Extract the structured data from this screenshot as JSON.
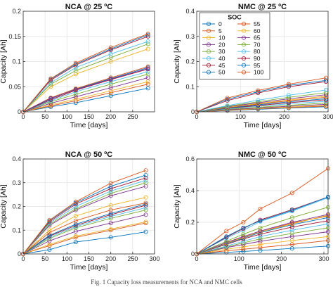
{
  "figure": {
    "caption": "Fig. 1 Capacity loss measurements for NCA and NMC cells"
  },
  "chart_data": [
    {
      "type": "line",
      "title": "NCA @ 25 ºC",
      "xlabel": "Time [days]",
      "ylabel": "Capacity [Ah]",
      "xlim": [
        0,
        300
      ],
      "ylim": [
        0,
        0.2
      ],
      "xticks": [
        0,
        50,
        100,
        150,
        200,
        250
      ],
      "yticks": [
        0,
        0.05,
        0.1,
        0.15,
        0.2
      ],
      "grid": true,
      "x": [
        0,
        63,
        120,
        200,
        285
      ],
      "series": [
        {
          "name": "0",
          "color": "#0072BD",
          "values": [
            0,
            0.01,
            0.018,
            0.032,
            0.047
          ]
        },
        {
          "name": "5",
          "color": "#D95319",
          "values": [
            0,
            0.012,
            0.022,
            0.038,
            0.055
          ]
        },
        {
          "name": "10",
          "color": "#EDB120",
          "values": [
            0,
            0.014,
            0.025,
            0.042,
            0.06
          ]
        },
        {
          "name": "20",
          "color": "#7E2F8E",
          "values": [
            0,
            0.017,
            0.03,
            0.048,
            0.068
          ]
        },
        {
          "name": "30",
          "color": "#77AC30",
          "values": [
            0,
            0.02,
            0.035,
            0.055,
            0.075
          ]
        },
        {
          "name": "40",
          "color": "#4DBEEE",
          "values": [
            0,
            0.022,
            0.04,
            0.06,
            0.08
          ]
        },
        {
          "name": "45",
          "color": "#A2142F",
          "values": [
            0,
            0.024,
            0.043,
            0.064,
            0.085
          ]
        },
        {
          "name": "50",
          "color": "#0072BD",
          "values": [
            0,
            0.026,
            0.045,
            0.066,
            0.088
          ]
        },
        {
          "name": "55",
          "color": "#D95319",
          "values": [
            0,
            0.028,
            0.046,
            0.068,
            0.09
          ]
        },
        {
          "name": "60",
          "color": "#EDB120",
          "values": [
            0,
            0.05,
            0.075,
            0.1,
            0.125
          ]
        },
        {
          "name": "65",
          "color": "#7E2F8E",
          "values": [
            0,
            0.027,
            0.044,
            0.065,
            0.086
          ]
        },
        {
          "name": "70",
          "color": "#77AC30",
          "values": [
            0,
            0.055,
            0.082,
            0.108,
            0.135
          ]
        },
        {
          "name": "80",
          "color": "#4DBEEE",
          "values": [
            0,
            0.058,
            0.088,
            0.115,
            0.14
          ]
        },
        {
          "name": "90",
          "color": "#A2142F",
          "values": [
            0,
            0.063,
            0.093,
            0.123,
            0.15
          ]
        },
        {
          "name": "95",
          "color": "#0072BD",
          "values": [
            0,
            0.065,
            0.095,
            0.125,
            0.153
          ]
        },
        {
          "name": "100",
          "color": "#D95319",
          "values": [
            0,
            0.066,
            0.097,
            0.128,
            0.155
          ]
        }
      ]
    },
    {
      "type": "line",
      "title": "NMC @ 25 ºC",
      "xlabel": "Time [days]",
      "ylabel": "Capacity [Ah]",
      "xlim": [
        0,
        300
      ],
      "ylim": [
        0,
        0.4
      ],
      "xticks": [
        0,
        100,
        200,
        300
      ],
      "yticks": [
        0,
        0.1,
        0.2,
        0.3,
        0.4
      ],
      "grid": true,
      "legend": {
        "title": "SOC",
        "placement": "top-right",
        "columns": 2
      },
      "x": [
        0,
        70,
        140,
        210,
        295
      ],
      "series": [
        {
          "name": "0",
          "color": "#0072BD",
          "values": [
            0,
            0.005,
            0.01,
            0.015,
            0.02
          ]
        },
        {
          "name": "5",
          "color": "#D95319",
          "values": [
            0,
            0.006,
            0.012,
            0.017,
            0.023
          ]
        },
        {
          "name": "10",
          "color": "#EDB120",
          "values": [
            0,
            0.007,
            0.013,
            0.019,
            0.026
          ]
        },
        {
          "name": "20",
          "color": "#7E2F8E",
          "values": [
            0,
            0.008,
            0.015,
            0.022,
            0.03
          ]
        },
        {
          "name": "30",
          "color": "#77AC30",
          "values": [
            0,
            0.01,
            0.018,
            0.026,
            0.035
          ]
        },
        {
          "name": "40",
          "color": "#4DBEEE",
          "values": [
            0,
            0.012,
            0.022,
            0.032,
            0.042
          ]
        },
        {
          "name": "45",
          "color": "#A2142F",
          "values": [
            0,
            0.014,
            0.025,
            0.036,
            0.048
          ]
        },
        {
          "name": "50",
          "color": "#0072BD",
          "values": [
            0,
            0.015,
            0.028,
            0.04,
            0.052
          ]
        },
        {
          "name": "55",
          "color": "#D95319",
          "values": [
            0,
            0.017,
            0.031,
            0.044,
            0.058
          ]
        },
        {
          "name": "60",
          "color": "#EDB120",
          "values": [
            0,
            0.018,
            0.033,
            0.047,
            0.062
          ]
        },
        {
          "name": "65",
          "color": "#7E2F8E",
          "values": [
            0,
            0.02,
            0.036,
            0.052,
            0.068
          ]
        },
        {
          "name": "70",
          "color": "#77AC30",
          "values": [
            0,
            0.022,
            0.04,
            0.058,
            0.076
          ]
        },
        {
          "name": "80",
          "color": "#4DBEEE",
          "values": [
            0,
            0.025,
            0.046,
            0.066,
            0.087
          ]
        },
        {
          "name": "90",
          "color": "#A2142F",
          "values": [
            0,
            0.045,
            0.075,
            0.1,
            0.12
          ]
        },
        {
          "name": "95",
          "color": "#0072BD",
          "values": [
            0,
            0.05,
            0.08,
            0.105,
            0.125
          ]
        },
        {
          "name": "100",
          "color": "#D95319",
          "values": [
            0,
            0.055,
            0.085,
            0.11,
            0.135
          ]
        }
      ]
    },
    {
      "type": "line",
      "title": "NCA @ 50 ºC",
      "xlabel": "Time [days]",
      "ylabel": "Capacity [Ah]",
      "xlim": [
        0,
        300
      ],
      "ylim": [
        0,
        0.4
      ],
      "xticks": [
        0,
        50,
        100,
        150,
        200,
        250,
        300
      ],
      "yticks": [
        0,
        0.1,
        0.2,
        0.3,
        0.4
      ],
      "grid": true,
      "x": [
        0,
        60,
        120,
        200,
        280
      ],
      "series": [
        {
          "name": "0",
          "color": "#0072BD",
          "values": [
            0,
            0.018,
            0.05,
            0.07,
            0.093
          ]
        },
        {
          "name": "5",
          "color": "#D95319",
          "values": [
            0,
            0.035,
            0.07,
            0.1,
            0.13
          ]
        },
        {
          "name": "10",
          "color": "#EDB120",
          "values": [
            0,
            0.04,
            0.075,
            0.105,
            0.135
          ]
        },
        {
          "name": "20",
          "color": "#7E2F8E",
          "values": [
            0,
            0.055,
            0.095,
            0.13,
            0.165
          ]
        },
        {
          "name": "30",
          "color": "#77AC30",
          "values": [
            0,
            0.065,
            0.11,
            0.15,
            0.185
          ]
        },
        {
          "name": "40",
          "color": "#4DBEEE",
          "values": [
            0,
            0.07,
            0.115,
            0.158,
            0.195
          ]
        },
        {
          "name": "45",
          "color": "#A2142F",
          "values": [
            0,
            0.075,
            0.12,
            0.165,
            0.205
          ]
        },
        {
          "name": "50",
          "color": "#0072BD",
          "values": [
            0,
            0.078,
            0.125,
            0.17,
            0.21
          ]
        },
        {
          "name": "55",
          "color": "#D95319",
          "values": [
            0,
            0.09,
            0.14,
            0.185,
            0.215
          ]
        },
        {
          "name": "60",
          "color": "#EDB120",
          "values": [
            0,
            0.1,
            0.16,
            0.205,
            0.238
          ]
        },
        {
          "name": "65",
          "color": "#7E2F8E",
          "values": [
            0,
            0.12,
            0.185,
            0.245,
            0.285
          ]
        },
        {
          "name": "70",
          "color": "#77AC30",
          "values": [
            0,
            0.125,
            0.19,
            0.255,
            0.3
          ]
        },
        {
          "name": "80",
          "color": "#4DBEEE",
          "values": [
            0,
            0.13,
            0.2,
            0.265,
            0.31
          ]
        },
        {
          "name": "90",
          "color": "#A2142F",
          "values": [
            0,
            0.135,
            0.21,
            0.275,
            0.32
          ]
        },
        {
          "name": "95",
          "color": "#0072BD",
          "values": [
            0,
            0.14,
            0.215,
            0.285,
            0.332
          ]
        },
        {
          "name": "100",
          "color": "#D95319",
          "values": [
            0,
            0.142,
            0.22,
            0.298,
            0.352
          ]
        }
      ]
    },
    {
      "type": "line",
      "title": "NMC @ 50 ºC",
      "xlabel": "Time [days]",
      "ylabel": "Capacity [Ah]",
      "xlim": [
        0,
        310
      ],
      "ylim": [
        0,
        0.6
      ],
      "xticks": [
        0,
        100,
        200,
        300
      ],
      "yticks": [
        0,
        0.2,
        0.4,
        0.6
      ],
      "grid": true,
      "x": [
        0,
        70,
        110,
        150,
        225,
        310
      ],
      "series": [
        {
          "name": "0",
          "color": "#0072BD",
          "values": [
            0,
            0.01,
            0.016,
            0.022,
            0.035,
            0.05
          ]
        },
        {
          "name": "5",
          "color": "#D95319",
          "values": [
            0,
            0.02,
            0.03,
            0.04,
            0.06,
            0.085
          ]
        },
        {
          "name": "10",
          "color": "#EDB120",
          "values": [
            0,
            0.03,
            0.045,
            0.06,
            0.085,
            0.11
          ]
        },
        {
          "name": "20",
          "color": "#7E2F8E",
          "values": [
            0,
            0.04,
            0.06,
            0.08,
            0.11,
            0.14
          ]
        },
        {
          "name": "30",
          "color": "#77AC30",
          "values": [
            0,
            0.045,
            0.07,
            0.095,
            0.13,
            0.165
          ]
        },
        {
          "name": "40",
          "color": "#4DBEEE",
          "values": [
            0,
            0.05,
            0.08,
            0.11,
            0.15,
            0.19
          ]
        },
        {
          "name": "45",
          "color": "#A2142F",
          "values": [
            0,
            0.06,
            0.095,
            0.125,
            0.17,
            0.21
          ]
        },
        {
          "name": "50",
          "color": "#0072BD",
          "values": [
            0,
            0.065,
            0.1,
            0.135,
            0.185,
            0.23
          ]
        },
        {
          "name": "55",
          "color": "#D95319",
          "values": [
            0,
            0.07,
            0.105,
            0.14,
            0.195,
            0.24
          ]
        },
        {
          "name": "60",
          "color": "#EDB120",
          "values": [
            0,
            0.068,
            0.105,
            0.14,
            0.19,
            0.245
          ]
        },
        {
          "name": "65",
          "color": "#7E2F8E",
          "values": [
            0,
            0.072,
            0.11,
            0.145,
            0.2,
            0.25
          ]
        },
        {
          "name": "70",
          "color": "#77AC30",
          "values": [
            0,
            0.08,
            0.125,
            0.165,
            0.23,
            0.295
          ]
        },
        {
          "name": "80",
          "color": "#4DBEEE",
          "values": [
            0,
            0.1,
            0.15,
            0.205,
            0.27,
            0.355
          ]
        },
        {
          "name": "90",
          "color": "#A2142F",
          "values": [
            0,
            0.105,
            0.16,
            0.215,
            0.28,
            0.36
          ]
        },
        {
          "name": "95",
          "color": "#0072BD",
          "values": [
            0,
            0.11,
            0.165,
            0.21,
            0.275,
            0.36
          ]
        },
        {
          "name": "100",
          "color": "#D95319",
          "values": [
            0,
            0.145,
            0.2,
            0.285,
            0.385,
            0.54
          ]
        }
      ]
    }
  ]
}
